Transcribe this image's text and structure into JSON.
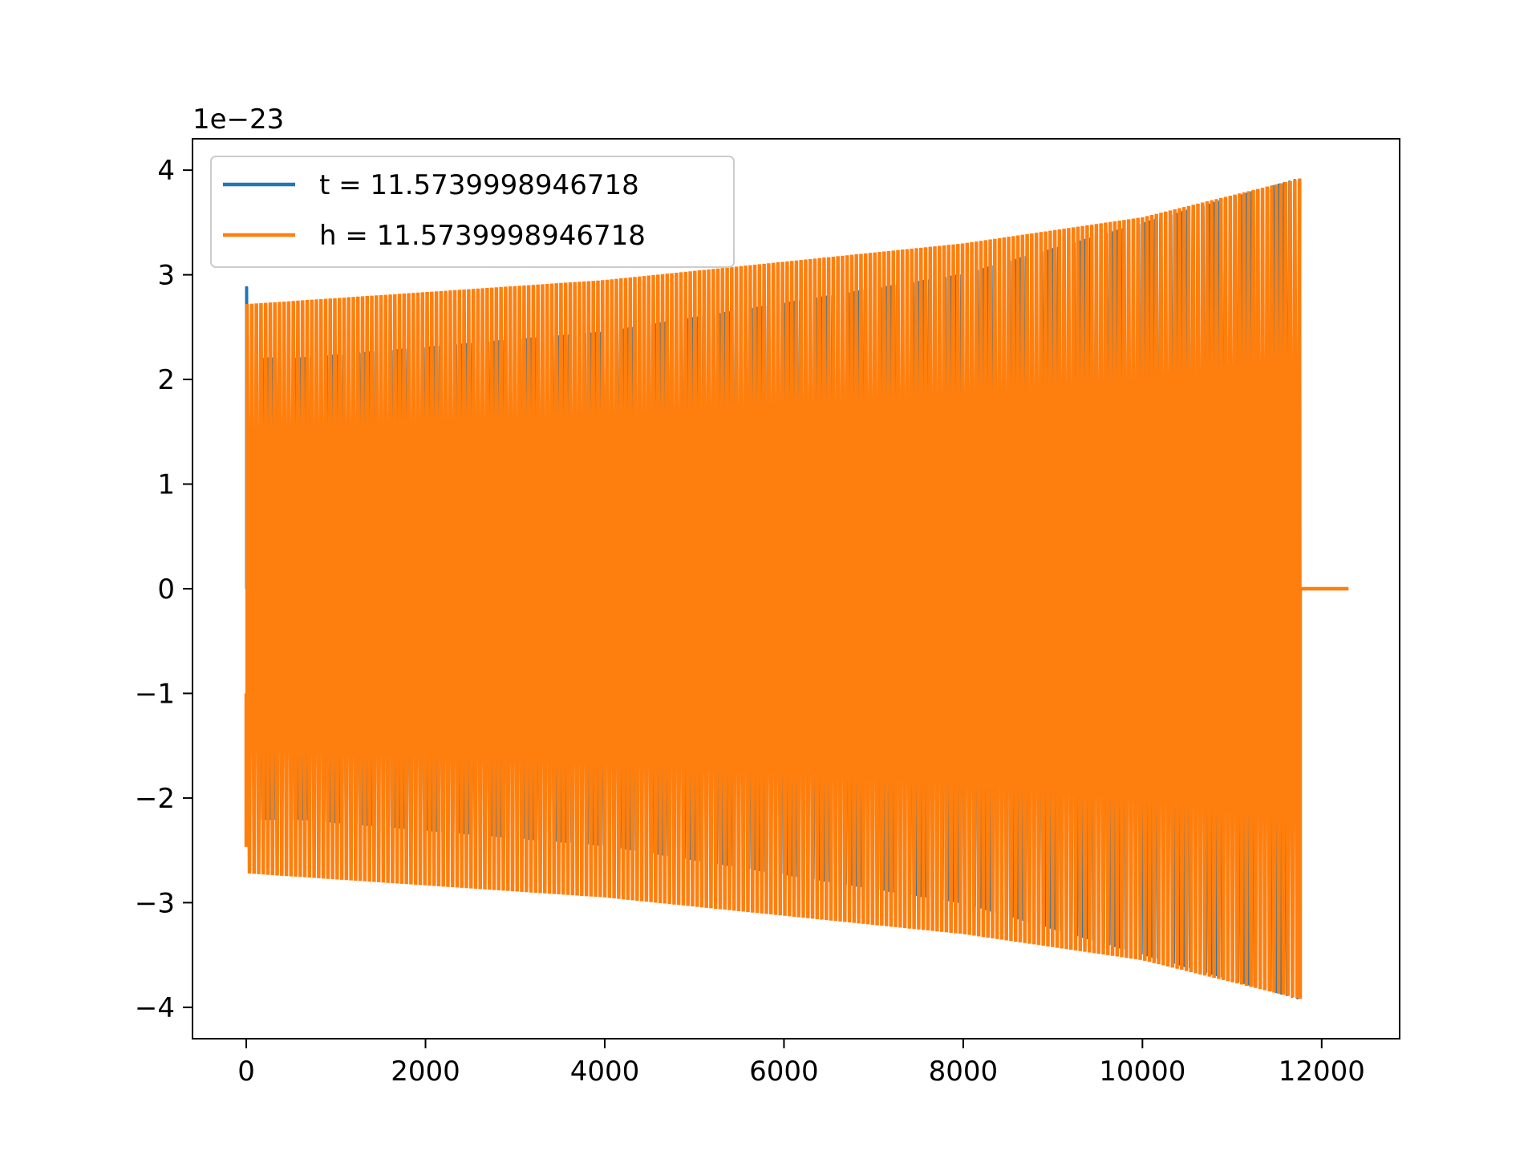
{
  "chart_data": {
    "type": "line",
    "title": "",
    "xlabel": "",
    "ylabel": "",
    "y_offset_label": "1e−23",
    "xlim": [
      -600,
      12870
    ],
    "ylim": [
      -4.3,
      4.3
    ],
    "xticks": [
      {
        "value": 0,
        "label": "0"
      },
      {
        "value": 2000,
        "label": "2000"
      },
      {
        "value": 4000,
        "label": "4000"
      },
      {
        "value": 6000,
        "label": "6000"
      },
      {
        "value": 8000,
        "label": "8000"
      },
      {
        "value": 10000,
        "label": "10000"
      },
      {
        "value": 12000,
        "label": "12000"
      }
    ],
    "yticks": [
      {
        "value": 4,
        "label": "4"
      },
      {
        "value": 3,
        "label": "3"
      },
      {
        "value": 2,
        "label": "2"
      },
      {
        "value": 1,
        "label": "1"
      },
      {
        "value": 0,
        "label": "0"
      },
      {
        "value": -1,
        "label": "−1"
      },
      {
        "value": -2,
        "label": "−2"
      },
      {
        "value": -3,
        "label": "−3"
      },
      {
        "value": -4,
        "label": "−4"
      }
    ],
    "grid": false,
    "legend_position": "top-left",
    "series": [
      {
        "name": "t = 11.5739998946718",
        "color": "#1f77b4",
        "x_start": 0,
        "x_end": 11760,
        "initial_amplitude": 2.88,
        "envelope": [
          [
            0,
            2.2
          ],
          [
            600,
            2.2
          ],
          [
            4000,
            2.45
          ],
          [
            8000,
            3.0
          ],
          [
            11760,
            3.92
          ]
        ]
      },
      {
        "name": "h = 11.5739998946718",
        "color": "#ff7f0e",
        "x_start": 0,
        "x_end": 11760,
        "tail_end": 12300,
        "tail_value": 0,
        "envelope": [
          [
            0,
            2.72
          ],
          [
            4000,
            2.95
          ],
          [
            8000,
            3.3
          ],
          [
            10000,
            3.55
          ],
          [
            11760,
            3.92
          ]
        ]
      }
    ]
  }
}
